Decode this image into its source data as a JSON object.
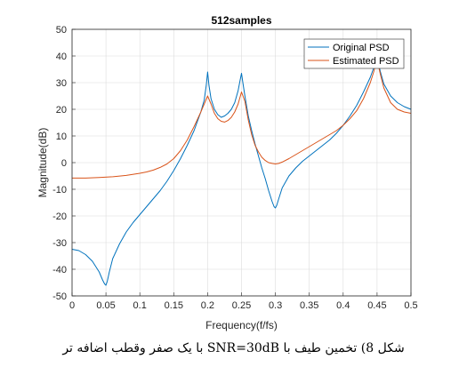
{
  "chart_data": {
    "type": "line",
    "title": "512samples",
    "xlabel": "Frequency(f/fs)",
    "ylabel": "Magnitude(dB)",
    "xlim": [
      0,
      0.5
    ],
    "ylim": [
      -50,
      50
    ],
    "xticks": [
      "0",
      "0.05",
      "0.1",
      "0.15",
      "0.2",
      "0.25",
      "0.3",
      "0.35",
      "0.4",
      "0.45",
      "0.5"
    ],
    "yticks": [
      "-50",
      "-40",
      "-30",
      "-20",
      "-10",
      "0",
      "10",
      "20",
      "30",
      "40",
      "50"
    ],
    "grid": true,
    "legend_position": "top-right",
    "series": [
      {
        "name": "Original PSD",
        "color": "#0072BD",
        "x": [
          0,
          0.01,
          0.02,
          0.03,
          0.04,
          0.045,
          0.048,
          0.05,
          0.052,
          0.055,
          0.06,
          0.07,
          0.08,
          0.09,
          0.1,
          0.11,
          0.12,
          0.13,
          0.14,
          0.15,
          0.16,
          0.17,
          0.18,
          0.19,
          0.195,
          0.198,
          0.2,
          0.202,
          0.205,
          0.21,
          0.215,
          0.22,
          0.225,
          0.23,
          0.235,
          0.24,
          0.245,
          0.248,
          0.25,
          0.252,
          0.255,
          0.26,
          0.265,
          0.27,
          0.275,
          0.28,
          0.285,
          0.29,
          0.295,
          0.298,
          0.3,
          0.302,
          0.305,
          0.31,
          0.32,
          0.33,
          0.34,
          0.35,
          0.36,
          0.37,
          0.38,
          0.39,
          0.4,
          0.41,
          0.42,
          0.43,
          0.44,
          0.445,
          0.448,
          0.45,
          0.452,
          0.455,
          0.46,
          0.47,
          0.48,
          0.49,
          0.5
        ],
        "y": [
          -32.5,
          -33,
          -34.5,
          -37,
          -41,
          -44,
          -45.5,
          -46,
          -44.5,
          -41,
          -36,
          -30.5,
          -26,
          -22.5,
          -19.5,
          -16.5,
          -13.5,
          -10.5,
          -7,
          -3,
          1.5,
          6.5,
          12,
          19,
          23.5,
          29,
          34,
          29,
          24,
          20,
          18,
          17,
          17.5,
          18.5,
          20,
          22.5,
          27,
          31,
          33.5,
          30,
          25,
          17.5,
          12,
          7,
          2.5,
          -2,
          -6,
          -10.5,
          -14.5,
          -16.5,
          -17,
          -16,
          -13.5,
          -9.5,
          -5,
          -2,
          0.5,
          2.5,
          4.5,
          6.5,
          8.5,
          11,
          14,
          17.5,
          21.5,
          26.5,
          32,
          35.5,
          38,
          39,
          37,
          34,
          29.5,
          25,
          22.5,
          21,
          20
        ]
      },
      {
        "name": "Estimated PSD",
        "color": "#D95319",
        "x": [
          0,
          0.02,
          0.04,
          0.06,
          0.08,
          0.1,
          0.11,
          0.12,
          0.13,
          0.14,
          0.15,
          0.16,
          0.17,
          0.18,
          0.19,
          0.195,
          0.2,
          0.205,
          0.21,
          0.215,
          0.22,
          0.225,
          0.23,
          0.235,
          0.24,
          0.245,
          0.25,
          0.255,
          0.26,
          0.265,
          0.27,
          0.275,
          0.28,
          0.285,
          0.29,
          0.295,
          0.3,
          0.305,
          0.31,
          0.32,
          0.33,
          0.34,
          0.35,
          0.36,
          0.37,
          0.38,
          0.39,
          0.4,
          0.41,
          0.42,
          0.43,
          0.44,
          0.445,
          0.45,
          0.455,
          0.46,
          0.47,
          0.48,
          0.49,
          0.5
        ],
        "y": [
          -5.8,
          -5.8,
          -5.6,
          -5.3,
          -4.8,
          -4,
          -3.5,
          -2.8,
          -1.8,
          -0.5,
          1.5,
          4.5,
          8.5,
          13.5,
          19,
          22,
          25,
          22,
          18.5,
          16.5,
          15.5,
          15.2,
          15.8,
          17,
          19,
          22,
          26.5,
          23,
          16,
          10.5,
          6.5,
          4,
          2,
          0.8,
          0,
          -0.3,
          -0.5,
          -0.3,
          0.2,
          1.5,
          3,
          4.5,
          6,
          7.5,
          9,
          10.5,
          12,
          14,
          16.5,
          19.5,
          24,
          30,
          34,
          38.5,
          33,
          28,
          22.5,
          20,
          19,
          18.5
        ]
      }
    ]
  },
  "caption": "شکل 8) تخمین طیف با SNR=30dB با یک صفر وقطب اضافه تر"
}
